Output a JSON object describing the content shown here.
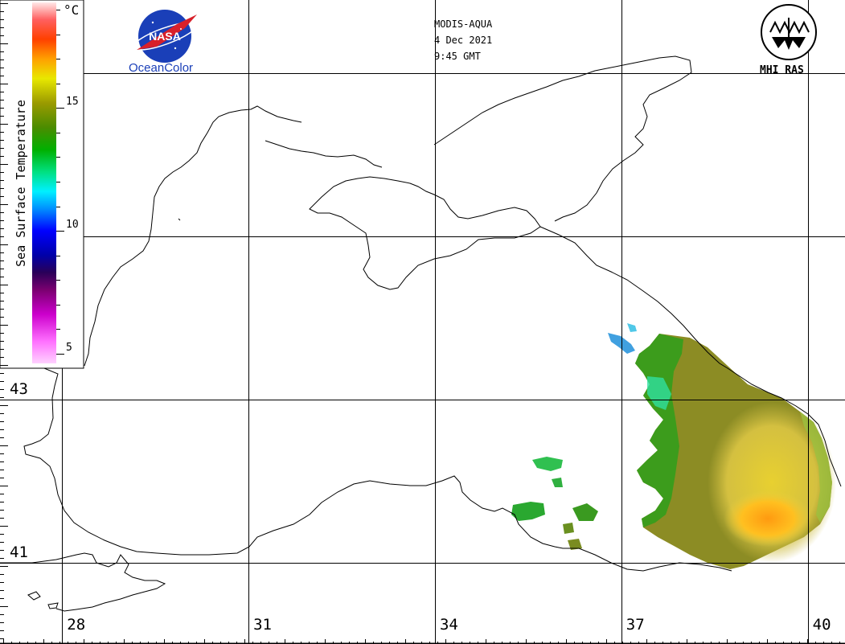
{
  "header": {
    "sensor": "MODIS-AQUA",
    "date": "4 Dec 2021",
    "time": "9:45 GMT"
  },
  "logos": {
    "left": {
      "icon": "nasa-meatball-icon",
      "emblem_text": "NASA",
      "caption": "OceanColor"
    },
    "right": {
      "icon": "mhi-ras-emblem-icon",
      "caption": "MHI RAS"
    }
  },
  "colorbar": {
    "title": "Sea Surface Temperature",
    "unit": "°C",
    "ticks": [
      {
        "label": "5",
        "value": 5
      },
      {
        "label": "10",
        "value": 10
      },
      {
        "label": "15",
        "value": 15
      }
    ],
    "range": [
      4.6,
      19.3
    ],
    "stops": [
      {
        "value": 4.6,
        "color": "#ffd2ff"
      },
      {
        "value": 5.5,
        "color": "#ff70ff"
      },
      {
        "value": 6.6,
        "color": "#cc00cc"
      },
      {
        "value": 7.6,
        "color": "#7a0070"
      },
      {
        "value": 8.3,
        "color": "#2a0058"
      },
      {
        "value": 9.0,
        "color": "#0000a8"
      },
      {
        "value": 10.0,
        "color": "#0000ff"
      },
      {
        "value": 10.9,
        "color": "#0090ff"
      },
      {
        "value": 11.6,
        "color": "#00f0ff"
      },
      {
        "value": 12.4,
        "color": "#00e080"
      },
      {
        "value": 13.3,
        "color": "#00b000"
      },
      {
        "value": 14.2,
        "color": "#4a8c00"
      },
      {
        "value": 15.2,
        "color": "#9a9a00"
      },
      {
        "value": 16.2,
        "color": "#e8e800"
      },
      {
        "value": 17.0,
        "color": "#ffa000"
      },
      {
        "value": 17.8,
        "color": "#ff4000"
      },
      {
        "value": 18.6,
        "color": "#ff6060"
      },
      {
        "value": 19.3,
        "color": "#ffe8e8"
      }
    ]
  },
  "map": {
    "lon_range": [
      27.0,
      40.6
    ],
    "lat_range": [
      40.0,
      47.9
    ],
    "lon_lines": [
      28,
      31,
      34,
      37,
      40
    ],
    "lat_lines": [
      41,
      43,
      45,
      47
    ],
    "lon_labels": [
      {
        "label": "28",
        "lon": 28
      },
      {
        "label": "31",
        "lon": 31
      },
      {
        "label": "34",
        "lon": 34
      },
      {
        "label": "37",
        "lon": 37
      },
      {
        "label": "40",
        "lon": 40
      }
    ],
    "lat_labels": [
      {
        "label": "43",
        "lat": 43
      },
      {
        "label": "41",
        "lat": 41
      }
    ]
  },
  "colors": {
    "coast": "#000000",
    "grid": "#000000",
    "background": "#ffffff",
    "nasa_blue": "#1a3fb8",
    "nasa_red": "#d8202a"
  }
}
